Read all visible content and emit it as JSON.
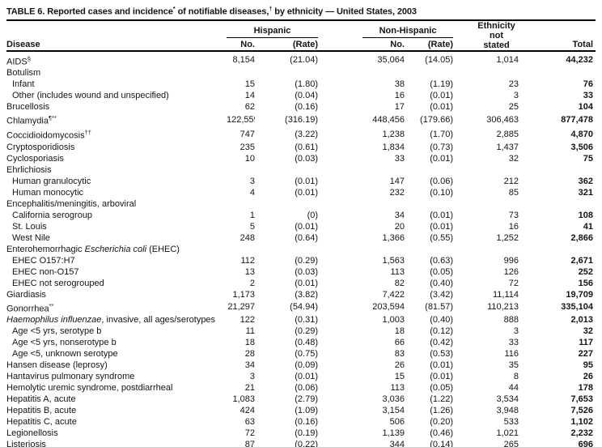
{
  "title": {
    "segments": [
      {
        "t": "TABLE 6. Reported cases and incidence",
        "sup": false
      },
      {
        "t": "*",
        "sup": true
      },
      {
        "t": " of notifiable diseases,",
        "sup": false
      },
      {
        "t": "†",
        "sup": true
      },
      {
        "t": " by ethnicity — United States, 2003",
        "sup": false
      }
    ]
  },
  "table": {
    "header": {
      "disease": "Disease",
      "groups": [
        {
          "label": "Hispanic"
        },
        {
          "label": "Non-Hispanic"
        }
      ],
      "sub_no": "No.",
      "sub_rate": "(Rate)",
      "ethnicity_lines": [
        "Ethnicity",
        "not",
        "stated"
      ],
      "total": "Total"
    },
    "columns": [
      "hispanic-no",
      "hispanic-rate",
      "non-hispanic-no",
      "non-hispanic-rate",
      "ethnicity-not-stated",
      "total"
    ],
    "rows": [
      {
        "parts": [
          {
            "t": "AIDS",
            "i": false
          }
        ],
        "sup": "§",
        "indent": false,
        "cells": [
          "8,154",
          "(21.04)",
          "35,064",
          "(14.05)",
          "1,014",
          "44,232"
        ]
      },
      {
        "parts": [
          {
            "t": "Botulism",
            "i": false
          }
        ],
        "sup": "",
        "indent": false,
        "cells": [
          "",
          "",
          "",
          "",
          "",
          ""
        ]
      },
      {
        "parts": [
          {
            "t": "Infant",
            "i": false
          }
        ],
        "sup": "",
        "indent": true,
        "cells": [
          "15",
          "(1.80)",
          "38",
          "(1.19)",
          "23",
          "76"
        ]
      },
      {
        "parts": [
          {
            "t": "Other (includes wound and unspecified)",
            "i": false
          }
        ],
        "sup": "",
        "indent": true,
        "cells": [
          "14",
          "(0.04)",
          "16",
          "(0.01)",
          "3",
          "33"
        ]
      },
      {
        "parts": [
          {
            "t": "Brucellosis",
            "i": false
          }
        ],
        "sup": "",
        "indent": false,
        "cells": [
          "62",
          "(0.16)",
          "17",
          "(0.01)",
          "25",
          "104"
        ]
      },
      {
        "parts": [
          {
            "t": "Chlamydia",
            "i": false
          }
        ],
        "sup": "¶**",
        "indent": false,
        "cells": [
          "122,559",
          "(316.19)",
          "448,456",
          "(179.66)",
          "306,463",
          "877,478"
        ]
      },
      {
        "parts": [
          {
            "t": "Coccidioidomycosis",
            "i": false
          }
        ],
        "sup": "††",
        "indent": false,
        "cells": [
          "747",
          "(3.22)",
          "1,238",
          "(1.70)",
          "2,885",
          "4,870"
        ]
      },
      {
        "parts": [
          {
            "t": "Cryptosporidiosis",
            "i": false
          }
        ],
        "sup": "",
        "indent": false,
        "cells": [
          "235",
          "(0.61)",
          "1,834",
          "(0.73)",
          "1,437",
          "3,506"
        ]
      },
      {
        "parts": [
          {
            "t": "Cyclosporiasis",
            "i": false
          }
        ],
        "sup": "",
        "indent": false,
        "cells": [
          "10",
          "(0.03)",
          "33",
          "(0.01)",
          "32",
          "75"
        ]
      },
      {
        "parts": [
          {
            "t": "Ehrlichiosis",
            "i": false
          }
        ],
        "sup": "",
        "indent": false,
        "cells": [
          "",
          "",
          "",
          "",
          "",
          ""
        ]
      },
      {
        "parts": [
          {
            "t": "Human granulocytic",
            "i": false
          }
        ],
        "sup": "",
        "indent": true,
        "cells": [
          "3",
          "(0.01)",
          "147",
          "(0.06)",
          "212",
          "362"
        ]
      },
      {
        "parts": [
          {
            "t": "Human monocytic",
            "i": false
          }
        ],
        "sup": "",
        "indent": true,
        "cells": [
          "4",
          "(0.01)",
          "232",
          "(0.10)",
          "85",
          "321"
        ]
      },
      {
        "parts": [
          {
            "t": "Encephalitis/meningitis, arboviral",
            "i": false
          }
        ],
        "sup": "",
        "indent": false,
        "cells": [
          "",
          "",
          "",
          "",
          "",
          ""
        ]
      },
      {
        "parts": [
          {
            "t": "California serogroup",
            "i": false
          }
        ],
        "sup": "",
        "indent": true,
        "cells": [
          "1",
          "(0)",
          "34",
          "(0.01)",
          "73",
          "108"
        ]
      },
      {
        "parts": [
          {
            "t": "St. Louis",
            "i": false
          }
        ],
        "sup": "",
        "indent": true,
        "cells": [
          "5",
          "(0.01)",
          "20",
          "(0.01)",
          "16",
          "41"
        ]
      },
      {
        "parts": [
          {
            "t": "West Nile",
            "i": false
          }
        ],
        "sup": "",
        "indent": true,
        "cells": [
          "248",
          "(0.64)",
          "1,366",
          "(0.55)",
          "1,252",
          "2,866"
        ]
      },
      {
        "parts": [
          {
            "t": "Enterohemorrhagic ",
            "i": false
          },
          {
            "t": "Escherichia coli",
            "i": true
          },
          {
            "t": " (EHEC)",
            "i": false
          }
        ],
        "sup": "",
        "indent": false,
        "cells": [
          "",
          "",
          "",
          "",
          "",
          ""
        ]
      },
      {
        "parts": [
          {
            "t": "EHEC O157:H7",
            "i": false
          }
        ],
        "sup": "",
        "indent": true,
        "cells": [
          "112",
          "(0.29)",
          "1,563",
          "(0.63)",
          "996",
          "2,671"
        ]
      },
      {
        "parts": [
          {
            "t": "EHEC non-O157",
            "i": false
          }
        ],
        "sup": "",
        "indent": true,
        "cells": [
          "13",
          "(0.03)",
          "113",
          "(0.05)",
          "126",
          "252"
        ]
      },
      {
        "parts": [
          {
            "t": "EHEC not serogrouped",
            "i": false
          }
        ],
        "sup": "",
        "indent": true,
        "cells": [
          "2",
          "(0.01)",
          "82",
          "(0.40)",
          "72",
          "156"
        ]
      },
      {
        "parts": [
          {
            "t": "Giardiasis",
            "i": false
          }
        ],
        "sup": "",
        "indent": false,
        "cells": [
          "1,173",
          "(3.82)",
          "7,422",
          "(3.42)",
          "11,114",
          "19,709"
        ]
      },
      {
        "parts": [
          {
            "t": "Gonorrhea",
            "i": false
          }
        ],
        "sup": "**",
        "indent": false,
        "cells": [
          "21,297",
          "(54.94)",
          "203,594",
          "(81.57)",
          "110,213",
          "335,104"
        ]
      },
      {
        "parts": [
          {
            "t": "Haemophilus influenzae",
            "i": true
          },
          {
            "t": ", invasive, all ages/serotypes",
            "i": false
          }
        ],
        "sup": "",
        "indent": false,
        "cells": [
          "122",
          "(0.31)",
          "1,003",
          "(0.40)",
          "888",
          "2,013"
        ]
      },
      {
        "parts": [
          {
            "t": "Age <5 yrs, serotype b",
            "i": false
          }
        ],
        "sup": "",
        "indent": true,
        "cells": [
          "11",
          "(0.29)",
          "18",
          "(0.12)",
          "3",
          "32"
        ]
      },
      {
        "parts": [
          {
            "t": "Age <5 yrs, nonserotype b",
            "i": false
          }
        ],
        "sup": "",
        "indent": true,
        "cells": [
          "18",
          "(0.48)",
          "66",
          "(0.42)",
          "33",
          "117"
        ]
      },
      {
        "parts": [
          {
            "t": "Age <5, unknown serotype",
            "i": false
          }
        ],
        "sup": "",
        "indent": true,
        "cells": [
          "28",
          "(0.75)",
          "83",
          "(0.53)",
          "116",
          "227"
        ]
      },
      {
        "parts": [
          {
            "t": "Hansen disease (leprosy)",
            "i": false
          }
        ],
        "sup": "",
        "indent": false,
        "cells": [
          "34",
          "(0.09)",
          "26",
          "(0.01)",
          "35",
          "95"
        ]
      },
      {
        "parts": [
          {
            "t": "Hantavirus pulmonary syndrome",
            "i": false
          }
        ],
        "sup": "",
        "indent": false,
        "cells": [
          "3",
          "(0.01)",
          "15",
          "(0.01)",
          "8",
          "26"
        ]
      },
      {
        "parts": [
          {
            "t": "Hemolytic uremic syndrome, postdiarrheal",
            "i": false
          }
        ],
        "sup": "",
        "indent": false,
        "cells": [
          "21",
          "(0.06)",
          "113",
          "(0.05)",
          "44",
          "178"
        ]
      },
      {
        "parts": [
          {
            "t": "Hepatitis A, acute",
            "i": false
          }
        ],
        "sup": "",
        "indent": false,
        "cells": [
          "1,083",
          "(2.79)",
          "3,036",
          "(1.22)",
          "3,534",
          "7,653"
        ]
      },
      {
        "parts": [
          {
            "t": "Hepatitis B, acute",
            "i": false
          }
        ],
        "sup": "",
        "indent": false,
        "cells": [
          "424",
          "(1.09)",
          "3,154",
          "(1.26)",
          "3,948",
          "7,526"
        ]
      },
      {
        "parts": [
          {
            "t": "Hepatitis C, acute",
            "i": false
          }
        ],
        "sup": "",
        "indent": false,
        "cells": [
          "63",
          "(0.16)",
          "506",
          "(0.20)",
          "533",
          "1,102"
        ]
      },
      {
        "parts": [
          {
            "t": "Legionellosis",
            "i": false
          }
        ],
        "sup": "",
        "indent": false,
        "cells": [
          "72",
          "(0.19)",
          "1,139",
          "(0.46)",
          "1,021",
          "2,232"
        ]
      },
      {
        "parts": [
          {
            "t": "Listeriosis",
            "i": false
          }
        ],
        "sup": "",
        "indent": false,
        "cells": [
          "87",
          "(0.22)",
          "344",
          "(0.14)",
          "265",
          "696"
        ]
      }
    ]
  }
}
